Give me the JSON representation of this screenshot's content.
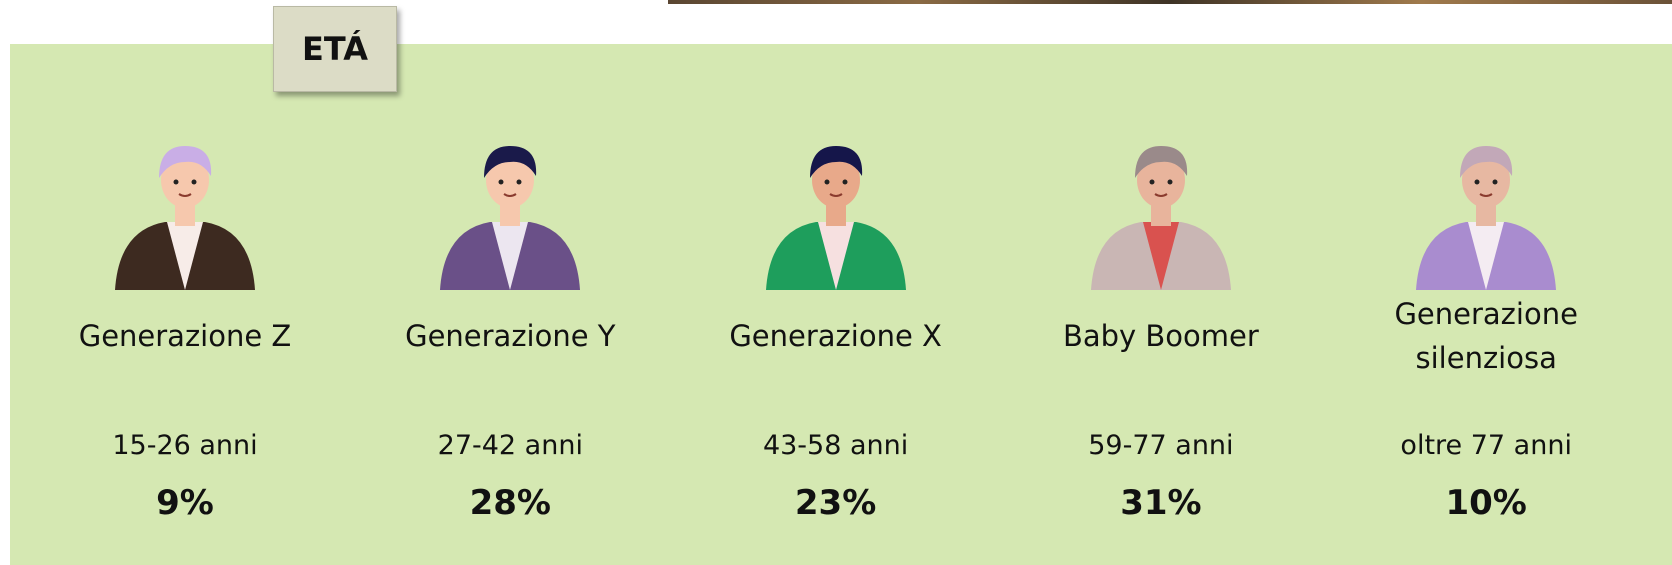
{
  "header": {
    "title": "ETÁ"
  },
  "groups": [
    {
      "name": "Generazione Z",
      "range": "15-26 anni",
      "share": "9%"
    },
    {
      "name": "Generazione Y",
      "range": "27-42 anni",
      "share": "28%"
    },
    {
      "name": "Generazione X",
      "range": "43-58 anni",
      "share": "23%"
    },
    {
      "name": "Baby Boomer",
      "range": "59-77 anni",
      "share": "31%"
    },
    {
      "name": "Generazione silenziosa",
      "range": "oltre 77 anni",
      "share": "10%"
    }
  ]
}
